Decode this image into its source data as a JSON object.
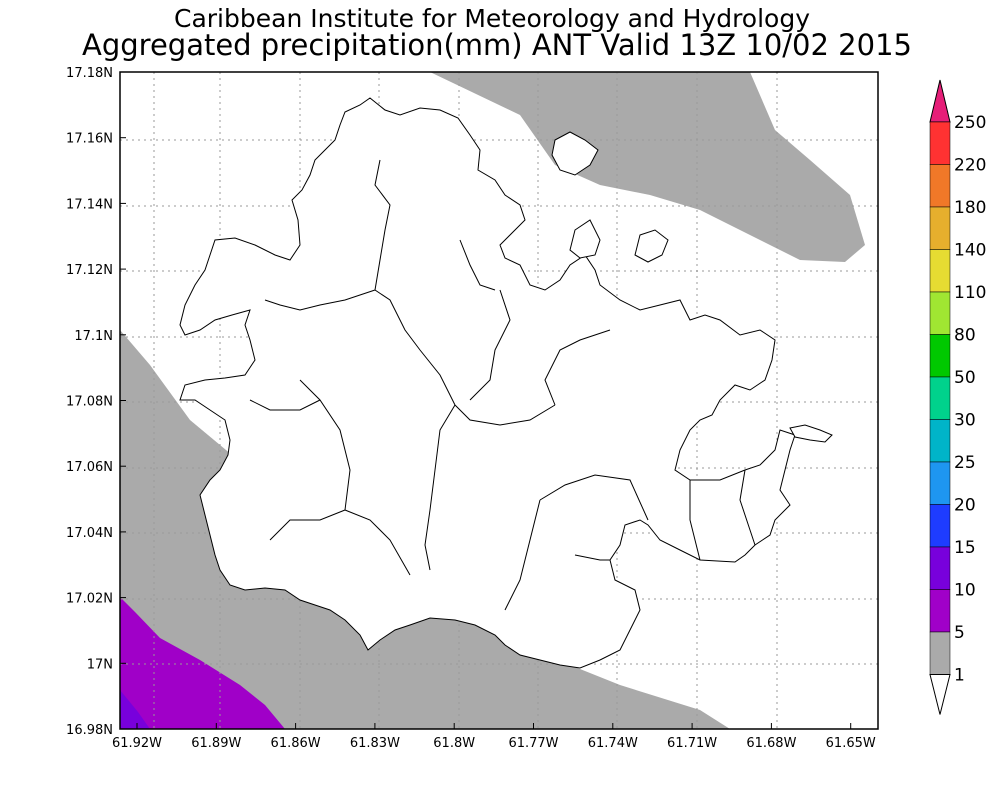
{
  "title": {
    "line1": "Caribbean Institute for Meteorology and Hydrology",
    "line2": "Aggregated precipitation(mm) ANT Valid 13Z 10/02 2015"
  },
  "colors": {
    "shade_1_5": "#aaaaaa",
    "shade_5_10": "#a000c8",
    "shade_10_15": "#7800dc",
    "land_fill": "#ffffff",
    "coastline": "#000000",
    "gridline": "#999999"
  },
  "chart_data": {
    "type": "heatmap",
    "x_ticks": [
      "61.92W",
      "61.89W",
      "61.86W",
      "61.83W",
      "61.8W",
      "61.77W",
      "61.74W",
      "61.71W",
      "61.68W",
      "61.65W"
    ],
    "y_ticks": [
      "17.18N",
      "17.16N",
      "17.14N",
      "17.12N",
      "17.1N",
      "17.08N",
      "17.06N",
      "17.04N",
      "17.02N",
      "17N",
      "16.98N"
    ],
    "x_range": [
      -61.92,
      -61.645
    ],
    "y_range": [
      16.98,
      17.18
    ],
    "grid": true,
    "legend": {
      "placement": "right",
      "labels": [
        "250",
        "220",
        "180",
        "140",
        "110",
        "80",
        "50",
        "30",
        "25",
        "20",
        "15",
        "10",
        "5",
        "1"
      ],
      "colors": [
        "#e61e78",
        "#ff3232",
        "#f07828",
        "#e6af2d",
        "#e6dc32",
        "#a0e632",
        "#00c800",
        "#00d28c",
        "#00b4c8",
        "#1e96f0",
        "#1e3cff",
        "#7800dc",
        "#a000c8",
        "#aaaaaa",
        "#ffffff"
      ]
    }
  }
}
